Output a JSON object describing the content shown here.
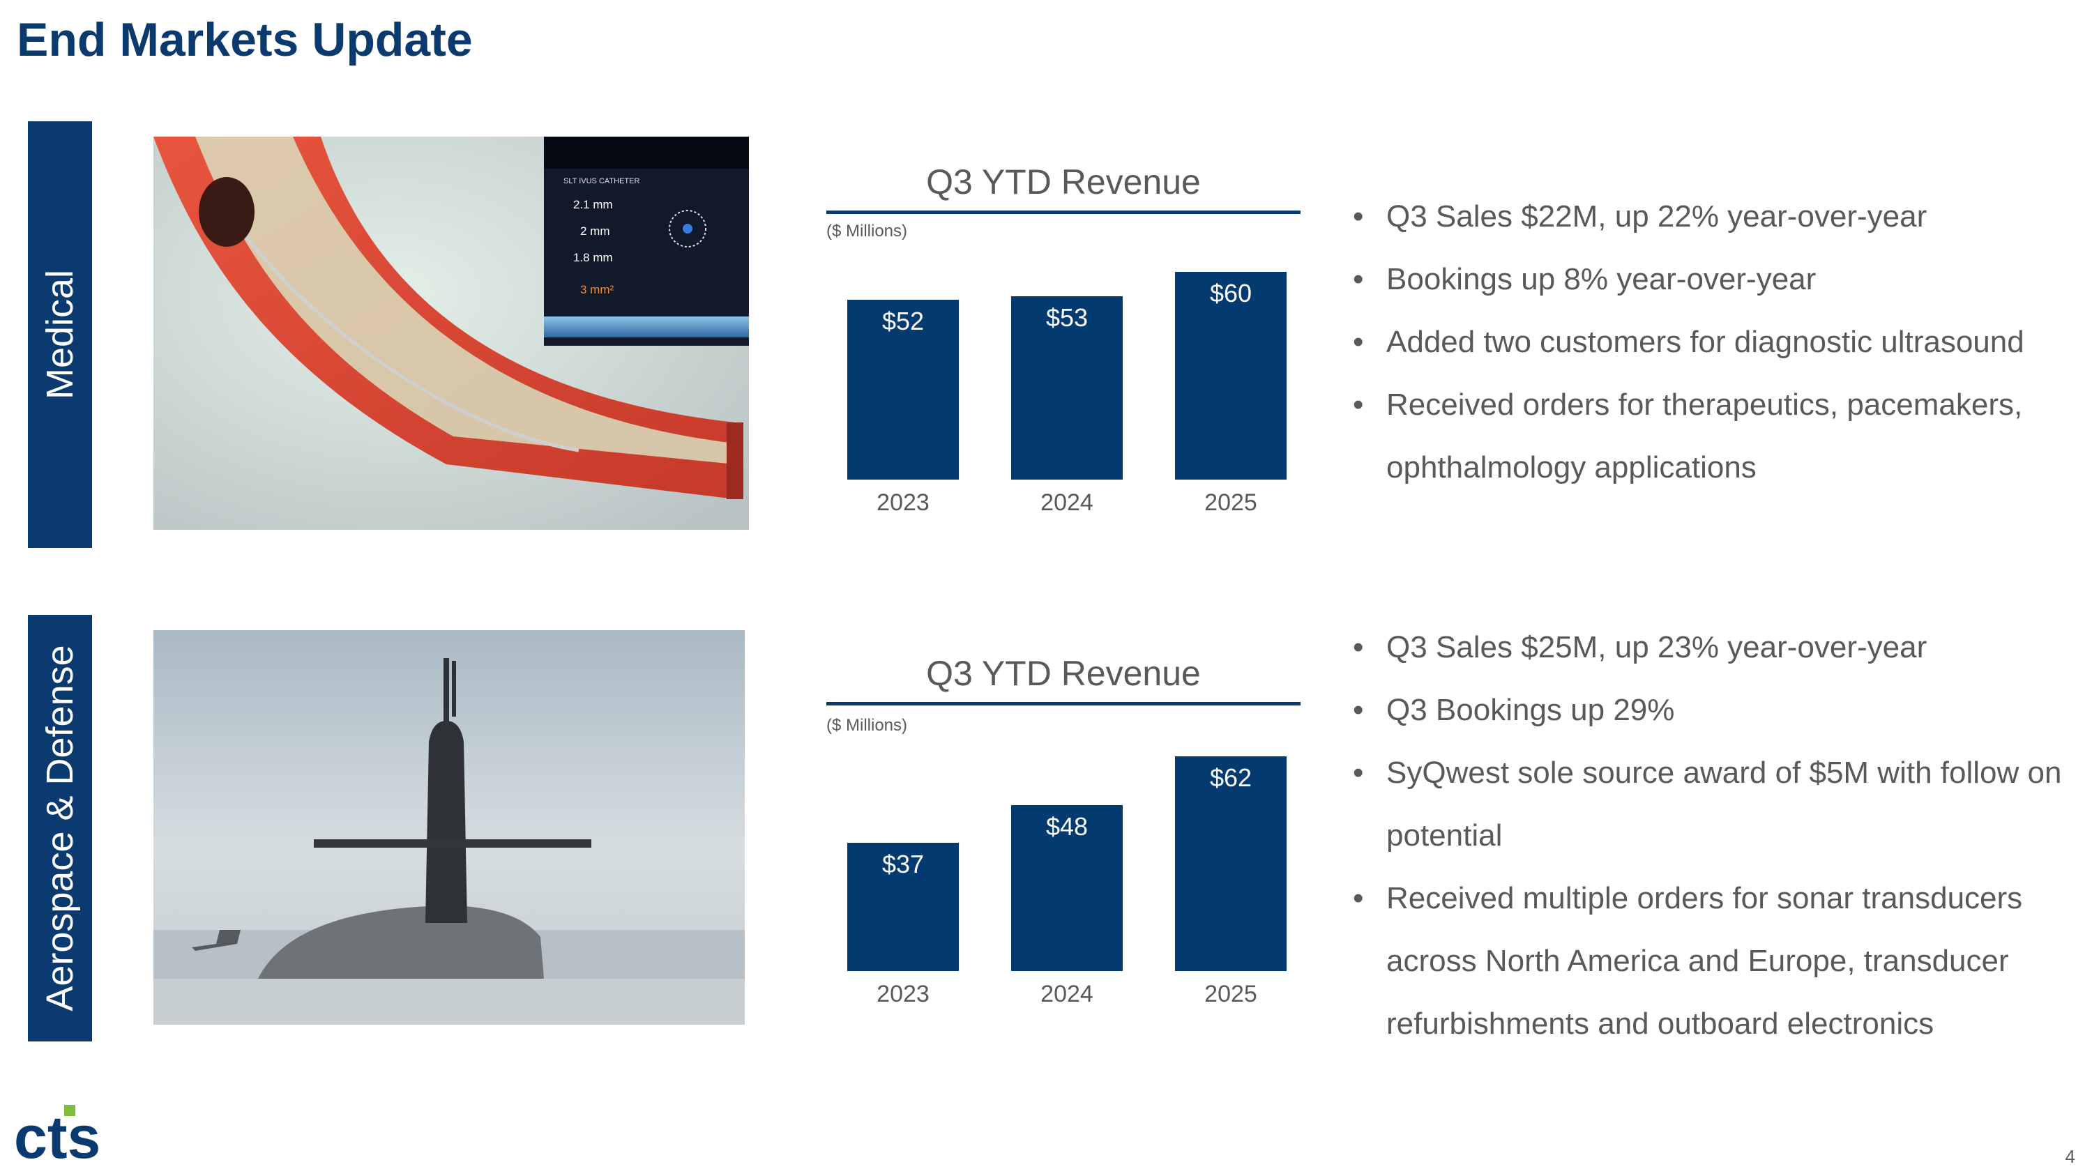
{
  "title": "End Markets Update",
  "logo_text": "cts",
  "page_number": "4",
  "sections": [
    {
      "label": "Medical",
      "image_overlay": {
        "heading": "SLT IVUS CATHETER",
        "values": [
          "2.1 mm",
          "2 mm",
          "1.8 mm",
          "3 mm²"
        ]
      },
      "bullets": [
        "Q3 Sales $22M, up 22% year-over-year",
        "Bookings up 8% year-over-year",
        "Added two customers for diagnostic ultrasound",
        "Received orders for therapeutics, pacemakers, ophthalmology applications"
      ]
    },
    {
      "label": "Aerospace & Defense",
      "bullets": [
        "Q3 Sales $25M, up 23% year-over-year",
        "Q3 Bookings up 29%",
        "SyQwest sole source award of $5M with follow on potential",
        "Received multiple orders for sonar transducers across North America and Europe, transducer refurbishments and outboard electronics"
      ]
    }
  ],
  "chart_data": [
    {
      "type": "bar",
      "title": "Q3 YTD Revenue",
      "unit_label": "($ Millions)",
      "categories": [
        "2023",
        "2024",
        "2025"
      ],
      "values": [
        52,
        53,
        60
      ],
      "data_labels": [
        "$52",
        "$53",
        "$60"
      ],
      "color": "#033a70",
      "ylim": [
        0,
        62
      ]
    },
    {
      "type": "bar",
      "title": "Q3 YTD Revenue",
      "unit_label": "($ Millions)",
      "categories": [
        "2023",
        "2024",
        "2025"
      ],
      "values": [
        37,
        48,
        62
      ],
      "data_labels": [
        "$37",
        "$48",
        "$62"
      ],
      "color": "#033a70",
      "ylim": [
        0,
        62
      ]
    }
  ]
}
